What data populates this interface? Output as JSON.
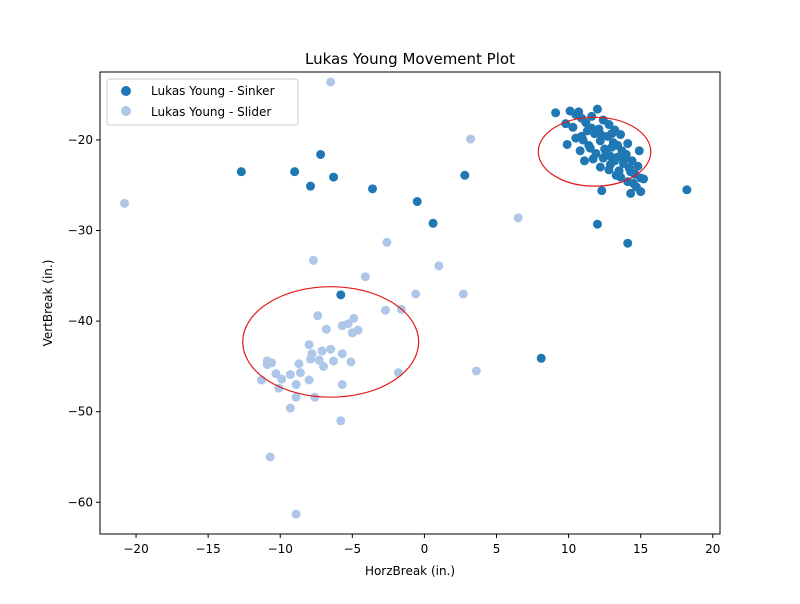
{
  "chart_data": {
    "type": "scatter",
    "title": "Lukas Young Movement Plot",
    "xlabel": "HorzBreak (in.)",
    "ylabel": "VertBreak (in.)",
    "xlim": [
      -22.5,
      20.5
    ],
    "ylim": [
      -63.5,
      -12.5
    ],
    "xticks": [
      -20,
      -15,
      -10,
      -5,
      0,
      5,
      10,
      15,
      20
    ],
    "yticks": [
      -20,
      -30,
      -40,
      -50,
      -60
    ],
    "grid": false,
    "legend_position": "top-left",
    "series": [
      {
        "name": "Lukas Young - Sinker",
        "color": "#1f77b4",
        "points": [
          [
            -12.7,
            -23.5
          ],
          [
            -9.0,
            -23.5
          ],
          [
            -7.2,
            -21.6
          ],
          [
            -7.9,
            -25.1
          ],
          [
            -6.3,
            -24.1
          ],
          [
            -3.6,
            -25.4
          ],
          [
            -0.5,
            -26.8
          ],
          [
            0.6,
            -29.2
          ],
          [
            2.8,
            -23.9
          ],
          [
            -5.8,
            -37.1
          ],
          [
            8.1,
            -44.1
          ],
          [
            18.2,
            -25.5
          ],
          [
            12.0,
            -29.3
          ],
          [
            14.1,
            -31.4
          ],
          [
            12.3,
            -25.6
          ],
          [
            9.1,
            -17.0
          ],
          [
            9.8,
            -18.2
          ],
          [
            9.9,
            -20.5
          ],
          [
            10.1,
            -16.8
          ],
          [
            10.5,
            -17.2
          ],
          [
            10.7,
            -16.9
          ],
          [
            10.9,
            -17.6
          ],
          [
            11.2,
            -18.1
          ],
          [
            11.6,
            -17.4
          ],
          [
            12.0,
            -16.6
          ],
          [
            12.4,
            -17.8
          ],
          [
            12.8,
            -18.3
          ],
          [
            13.2,
            -18.9
          ],
          [
            13.6,
            -19.4
          ],
          [
            11.1,
            -22.3
          ],
          [
            10.8,
            -21.2
          ],
          [
            10.5,
            -19.8
          ],
          [
            11.4,
            -20.6
          ],
          [
            11.8,
            -19.3
          ],
          [
            12.2,
            -20.1
          ],
          [
            12.6,
            -21.4
          ],
          [
            13.0,
            -20.8
          ],
          [
            13.4,
            -21.9
          ],
          [
            13.8,
            -22.6
          ],
          [
            14.2,
            -23.1
          ],
          [
            14.6,
            -23.8
          ],
          [
            15.0,
            -24.2
          ],
          [
            15.2,
            -24.3
          ],
          [
            14.3,
            -25.9
          ],
          [
            15.0,
            -25.7
          ],
          [
            14.7,
            -25.2
          ],
          [
            14.1,
            -24.6
          ],
          [
            13.5,
            -23.4
          ],
          [
            12.9,
            -22.7
          ],
          [
            12.4,
            -22.0
          ],
          [
            11.9,
            -21.5
          ],
          [
            11.5,
            -20.9
          ],
          [
            12.7,
            -19.6
          ],
          [
            13.1,
            -20.3
          ],
          [
            13.7,
            -21.2
          ],
          [
            14.1,
            -20.4
          ],
          [
            14.9,
            -21.2
          ],
          [
            14.4,
            -22.3
          ],
          [
            13.3,
            -23.9
          ],
          [
            12.8,
            -23.3
          ],
          [
            11.3,
            -19.0
          ],
          [
            10.3,
            -18.6
          ],
          [
            12.1,
            -18.8
          ],
          [
            13.9,
            -22.0
          ],
          [
            14.8,
            -22.9
          ],
          [
            13.2,
            -22.3
          ],
          [
            12.5,
            -21.0
          ],
          [
            11.7,
            -22.1
          ],
          [
            13.6,
            -24.1
          ],
          [
            14.5,
            -24.8
          ],
          [
            12.3,
            -19.5
          ],
          [
            11.0,
            -20.0
          ],
          [
            13.0,
            -19.3
          ],
          [
            14.0,
            -21.6
          ],
          [
            12.2,
            -23.0
          ],
          [
            13.4,
            -20.6
          ],
          [
            12.9,
            -21.8
          ],
          [
            14.3,
            -23.5
          ],
          [
            11.6,
            -18.7
          ],
          [
            10.9,
            -19.6
          ]
        ]
      },
      {
        "name": "Lukas Young - Slider",
        "color": "#aec7e8",
        "points": [
          [
            -20.8,
            -27.0
          ],
          [
            -6.5,
            -13.6
          ],
          [
            3.2,
            -19.9
          ],
          [
            6.5,
            -28.6
          ],
          [
            -2.6,
            -31.3
          ],
          [
            -7.7,
            -33.3
          ],
          [
            1.0,
            -33.9
          ],
          [
            -4.1,
            -35.1
          ],
          [
            -0.6,
            -37.0
          ],
          [
            2.7,
            -37.0
          ],
          [
            -7.4,
            -39.4
          ],
          [
            -2.7,
            -38.8
          ],
          [
            -1.6,
            -38.7
          ],
          [
            -4.9,
            -39.7
          ],
          [
            -5.3,
            -40.3
          ],
          [
            -5.7,
            -40.5
          ],
          [
            -4.6,
            -41.0
          ],
          [
            -6.8,
            -40.9
          ],
          [
            -5.0,
            -41.3
          ],
          [
            -5.7,
            -43.6
          ],
          [
            -8.0,
            -42.6
          ],
          [
            -6.5,
            -43.1
          ],
          [
            -7.1,
            -43.3
          ],
          [
            -7.8,
            -43.6
          ],
          [
            -8.7,
            -44.7
          ],
          [
            -6.3,
            -44.4
          ],
          [
            -7.3,
            -44.3
          ],
          [
            -7.9,
            -44.2
          ],
          [
            -7.0,
            -45.0
          ],
          [
            -5.1,
            -44.5
          ],
          [
            -8.6,
            -45.7
          ],
          [
            -9.3,
            -45.9
          ],
          [
            -10.3,
            -45.8
          ],
          [
            -10.6,
            -44.6
          ],
          [
            -10.9,
            -44.4
          ],
          [
            -11.3,
            -46.5
          ],
          [
            -10.9,
            -44.8
          ],
          [
            -9.9,
            -46.4
          ],
          [
            -8.0,
            -46.5
          ],
          [
            -10.1,
            -47.4
          ],
          [
            -8.9,
            -47.0
          ],
          [
            -7.6,
            -48.4
          ],
          [
            -8.9,
            -48.4
          ],
          [
            -5.7,
            -47.0
          ],
          [
            -9.3,
            -49.6
          ],
          [
            -5.8,
            -51.0
          ],
          [
            -10.7,
            -55.0
          ],
          [
            -8.9,
            -61.3
          ],
          [
            -1.8,
            -45.7
          ],
          [
            3.6,
            -45.5
          ]
        ]
      }
    ],
    "annotations": [
      {
        "shape": "ellipse",
        "color": "#e31a1c",
        "center": [
          11.8,
          -21.3
        ],
        "radius_x": 3.9,
        "radius_y": 3.8
      },
      {
        "shape": "ellipse",
        "color": "#e31a1c",
        "center": [
          -6.5,
          -42.3
        ],
        "radius_x": 6.1,
        "radius_y": 6.1
      }
    ]
  }
}
